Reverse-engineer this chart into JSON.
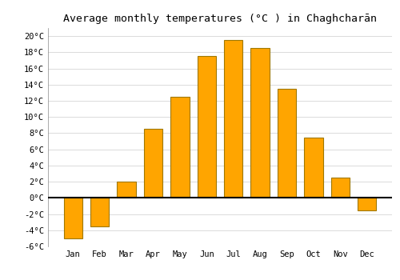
{
  "title": "Average monthly temperatures (°C ) in Chaghcharān",
  "months": [
    "Jan",
    "Feb",
    "Mar",
    "Apr",
    "May",
    "Jun",
    "Jul",
    "Aug",
    "Sep",
    "Oct",
    "Nov",
    "Dec"
  ],
  "values": [
    -5.0,
    -3.5,
    2.0,
    8.5,
    12.5,
    17.5,
    19.5,
    18.5,
    13.5,
    7.5,
    2.5,
    -1.5
  ],
  "bar_color": "#FFA500",
  "bar_edge_color": "#A07800",
  "background_color": "#FFFFFF",
  "plot_bg_color": "#FFFFFF",
  "grid_color": "#CCCCCC",
  "ylim_min": -6,
  "ylim_max": 21,
  "ytick_step": 2,
  "title_fontsize": 9.5,
  "tick_fontsize": 7.5
}
